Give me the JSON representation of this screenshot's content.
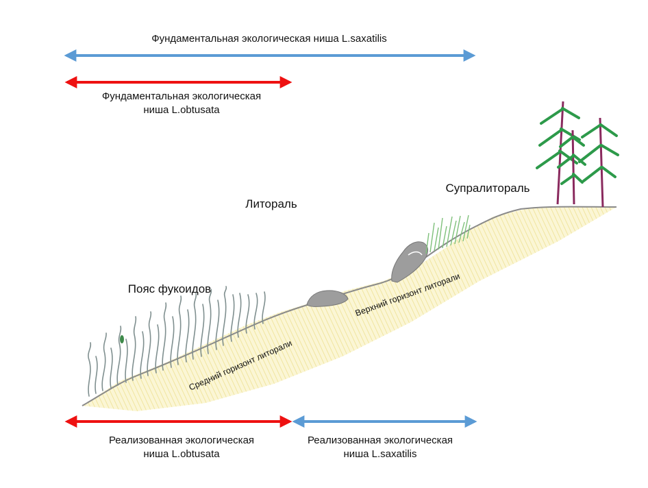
{
  "labels": {
    "saxatilis_fundamental": "Фундаментальная экологическая ниша L.saxatilis",
    "obtusata_fundamental_line1": "Фундаментальная экологическая",
    "obtusata_fundamental_line2": "ниша L.obtusata",
    "obtusata_realized_line1": "Реализованная экологическая",
    "obtusata_realized_line2": "ниша L.obtusata",
    "saxatilis_realized_line1": "Реализованная экологическая",
    "saxatilis_realized_line2": "ниша L.saxatilis",
    "littoral": "Литораль",
    "supralittoral": "Супралитораль",
    "fucoid_belt": "Пояс фукоидов",
    "middle_zone": "Средний горизонт литорали",
    "upper_zone": "Верхний горизонт литорали"
  },
  "colors": {
    "saxatilis_arrow": "#5b9bd5",
    "obtusata_arrow": "#ee1111",
    "shore_line": "#8a8a8a",
    "shore_fill": "#f7f1c4",
    "rock": "#9d9d9d",
    "seaweed": "#7f8f8f",
    "grass": "#7ec07a",
    "tree_trunk": "#8a2a5e",
    "tree_foliage": "#2d9a4a"
  },
  "icons": {
    "fucoid_seaweed": "seaweed-icon",
    "rock": "rock-icon",
    "grass": "grass-icon",
    "tree": "tree-icon"
  }
}
